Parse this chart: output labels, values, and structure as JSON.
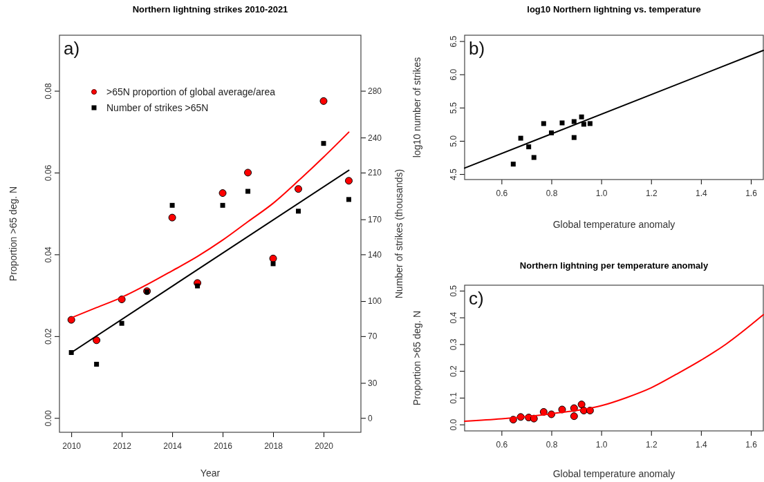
{
  "chart_data": [
    {
      "type": "scatter",
      "title": "Northern lightning strikes 2010-2021",
      "xlabel": "Year",
      "ylabel": "Proportion >65 deg. N",
      "y2label": "Number of strikes (thousands)",
      "annotations": [
        "a)"
      ],
      "x": [
        2010,
        2011,
        2012,
        2013,
        2014,
        2015,
        2016,
        2017,
        2018,
        2019,
        2020,
        2021
      ],
      "xlim": [
        2009.53,
        2021.48
      ],
      "xticks": [
        2010,
        2012,
        2014,
        2016,
        2018,
        2020
      ],
      "ylim": [
        -0.0035,
        0.0936
      ],
      "yticks": [
        {
          "value": 0,
          "label": "0.00"
        },
        {
          "value": 0.02,
          "label": "0.02"
        },
        {
          "value": 0.04,
          "label": "0.04"
        },
        {
          "value": 0.06,
          "label": "0.06"
        },
        {
          "value": 0.08,
          "label": "0.08"
        }
      ],
      "y2lim": [
        -12.25,
        327.6
      ],
      "y2ticks": [
        0,
        30,
        70,
        100,
        140,
        170,
        210,
        240,
        280
      ],
      "legend": "top left",
      "grid": false,
      "series": [
        {
          "name": ">65N proportion of global average/area",
          "type": "scatter",
          "marker": "circle",
          "color": "#ff0000",
          "values": [
            0.024,
            0.019,
            0.029,
            0.031,
            0.049,
            0.033,
            0.055,
            0.06,
            0.039,
            0.056,
            0.0775,
            0.058
          ]
        },
        {
          "name": "Number of strikes >65N",
          "type": "scatter",
          "marker": "square",
          "axis": "y2",
          "color": "#000000",
          "values": [
            56,
            46,
            81,
            108,
            182,
            113,
            182,
            194,
            132,
            177,
            235,
            187
          ]
        },
        {
          "type": "line",
          "color": "#ff0000",
          "values": [
            0.0245,
            0.027,
            0.0295,
            0.0326,
            0.036,
            0.0395,
            0.0435,
            0.048,
            0.0525,
            0.058,
            0.0638,
            0.0699
          ]
        },
        {
          "type": "line",
          "axis": "y2",
          "color": "#000000",
          "x": [
            2010,
            2021
          ],
          "values": [
            56,
            212
          ]
        }
      ]
    },
    {
      "type": "scatter",
      "title": "log10 Northern lightning vs. temperature",
      "xlabel": "Global temperature anomaly",
      "ylabel": "log10 number of strikes",
      "annotations": [
        "b)"
      ],
      "x": [
        0.647,
        0.677,
        0.709,
        0.73,
        0.769,
        0.8,
        0.843,
        0.891,
        0.891,
        0.921,
        0.93,
        0.955
      ],
      "xlim": [
        0.452,
        1.65
      ],
      "xticks": [
        0.6,
        0.8,
        {
          "value": 1.0,
          "label": "1.0"
        },
        1.2,
        1.4,
        1.6
      ],
      "ylim": [
        4.418,
        6.589
      ],
      "yticks": [
        4.5,
        {
          "value": 5.0,
          "label": "5.0"
        },
        5.5,
        {
          "value": 6.0,
          "label": "6.0"
        },
        6.5
      ],
      "grid": false,
      "series": [
        {
          "type": "scatter",
          "marker": "square",
          "color": "#000000",
          "values": [
            4.65,
            5.04,
            4.91,
            4.75,
            5.26,
            5.12,
            5.27,
            5.29,
            5.05,
            5.36,
            5.25,
            5.26
          ]
        },
        {
          "type": "line",
          "color": "#000000",
          "x": [
            0.452,
            1.65
          ],
          "values": [
            4.59,
            6.36
          ]
        }
      ]
    },
    {
      "type": "scatter",
      "title": "Northern lightning per temperature anomaly",
      "xlabel": "Global temperature anomaly",
      "ylabel": "Proportion >65 deg. N",
      "annotations": [
        "c)"
      ],
      "x": [
        0.647,
        0.677,
        0.709,
        0.73,
        0.769,
        0.8,
        0.843,
        0.891,
        0.891,
        0.921,
        0.93,
        0.955
      ],
      "xlim": [
        0.452,
        1.65
      ],
      "xticks": [
        0.6,
        0.8,
        {
          "value": 1.0,
          "label": "1.0"
        },
        1.2,
        1.4,
        1.6
      ],
      "ylim": [
        -0.024,
        0.5205
      ],
      "yticks": [
        {
          "value": 0,
          "label": "0.0"
        },
        0.1,
        0.2,
        0.3,
        0.4,
        0.5
      ],
      "grid": false,
      "series": [
        {
          "type": "scatter",
          "marker": "circle",
          "color": "#ff0000",
          "values": [
            0.018,
            0.028,
            0.026,
            0.022,
            0.047,
            0.038,
            0.056,
            0.061,
            0.031,
            0.075,
            0.052,
            0.052
          ]
        },
        {
          "type": "line",
          "color": "#ff0000",
          "x": [
            0.452,
            0.6,
            0.8,
            1.0,
            1.1,
            1.2,
            1.3,
            1.4,
            1.5,
            1.65
          ],
          "values": [
            0.012,
            0.021,
            0.04,
            0.07,
            0.1,
            0.137,
            0.187,
            0.24,
            0.3,
            0.41
          ]
        }
      ]
    }
  ]
}
